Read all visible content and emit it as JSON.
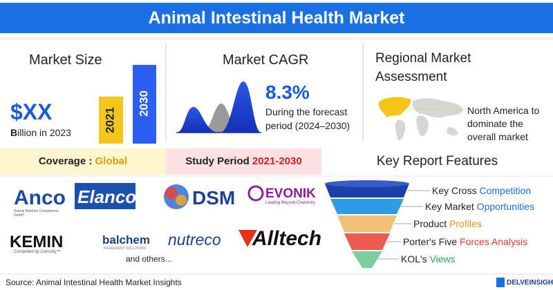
{
  "header": {
    "title": "Animal Intestinal Health Market"
  },
  "market_size": {
    "title": "Market Size",
    "value": "$XX",
    "note": "Billion in 2023",
    "bars": [
      "2021",
      "2030"
    ]
  },
  "market_cagr": {
    "title": "Market CAGR",
    "value": "8.3%",
    "note": "During the forecast period (2024–2030)"
  },
  "regional": {
    "title": "Regional Market Assessment",
    "note": "North America to dominate the overall market"
  },
  "coverage": {
    "label": "Coverage : ",
    "value": "Global"
  },
  "study_period": {
    "label": "Study Period ",
    "value": "2021-2030"
  },
  "key_features": {
    "title": "Key Report Features",
    "items": [
      {
        "text": "Key Cross ",
        "highlight": "Competition"
      },
      {
        "text": "Key Market ",
        "highlight": "Opportunities"
      },
      {
        "text": "Product ",
        "highlight": "Profiles"
      },
      {
        "text": "Porter's Five ",
        "highlight": "Forces Analysis"
      },
      {
        "text": "KOL's ",
        "highlight": "Views"
      }
    ]
  },
  "companies": {
    "logos": [
      {
        "name": "Anco",
        "tagline": "Animal Nutrition Competence GmbH"
      },
      {
        "name": "Elanco"
      },
      {
        "name": "DSM"
      },
      {
        "name": "EVONIK",
        "tagline": "Leading Beyond Chemistry"
      },
      {
        "name": "KEMIN",
        "tagline": "Compelled by Curiosity™"
      },
      {
        "name": "balchem",
        "tagline": "INGREDIENT SOLUTIONS"
      },
      {
        "name": "nutreco"
      },
      {
        "name": "Alltech"
      }
    ],
    "others": "and others..."
  },
  "footer": {
    "source": "Source: Animal Intestinal Health Market Insights",
    "brand": "DELVEINSIGHT"
  }
}
